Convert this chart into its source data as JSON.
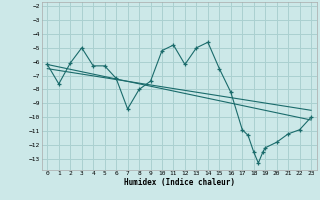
{
  "xlabel": "Humidex (Indice chaleur)",
  "background_color": "#cce8e8",
  "grid_color": "#aad0d0",
  "line_color": "#1a6b6b",
  "xlim": [
    -0.5,
    23.5
  ],
  "ylim": [
    -13.8,
    -1.7
  ],
  "xticks": [
    0,
    1,
    2,
    3,
    4,
    5,
    6,
    7,
    8,
    9,
    10,
    11,
    12,
    13,
    14,
    15,
    16,
    17,
    18,
    19,
    20,
    21,
    22,
    23
  ],
  "yticks": [
    -2,
    -3,
    -4,
    -5,
    -6,
    -7,
    -8,
    -9,
    -10,
    -11,
    -12,
    -13
  ],
  "x_data": [
    0,
    1,
    2,
    3,
    4,
    5,
    6,
    7,
    8,
    9,
    10,
    11,
    12,
    13,
    14,
    15,
    16,
    17,
    17.5,
    18,
    18.4,
    18.8,
    19,
    20,
    21,
    22,
    23
  ],
  "y_data": [
    -6.2,
    -7.6,
    -6.1,
    -5.0,
    -6.3,
    -6.3,
    -7.2,
    -9.4,
    -8.0,
    -7.4,
    -5.2,
    -4.8,
    -6.2,
    -5.0,
    -4.6,
    -6.5,
    -8.2,
    -10.9,
    -11.3,
    -12.5,
    -13.3,
    -12.5,
    -12.2,
    -11.8,
    -11.2,
    -10.9,
    -10.0
  ],
  "trend1_x": [
    0,
    23
  ],
  "trend1_y": [
    -6.2,
    -10.2
  ],
  "trend2_x": [
    0,
    23
  ],
  "trend2_y": [
    -6.5,
    -9.5
  ]
}
